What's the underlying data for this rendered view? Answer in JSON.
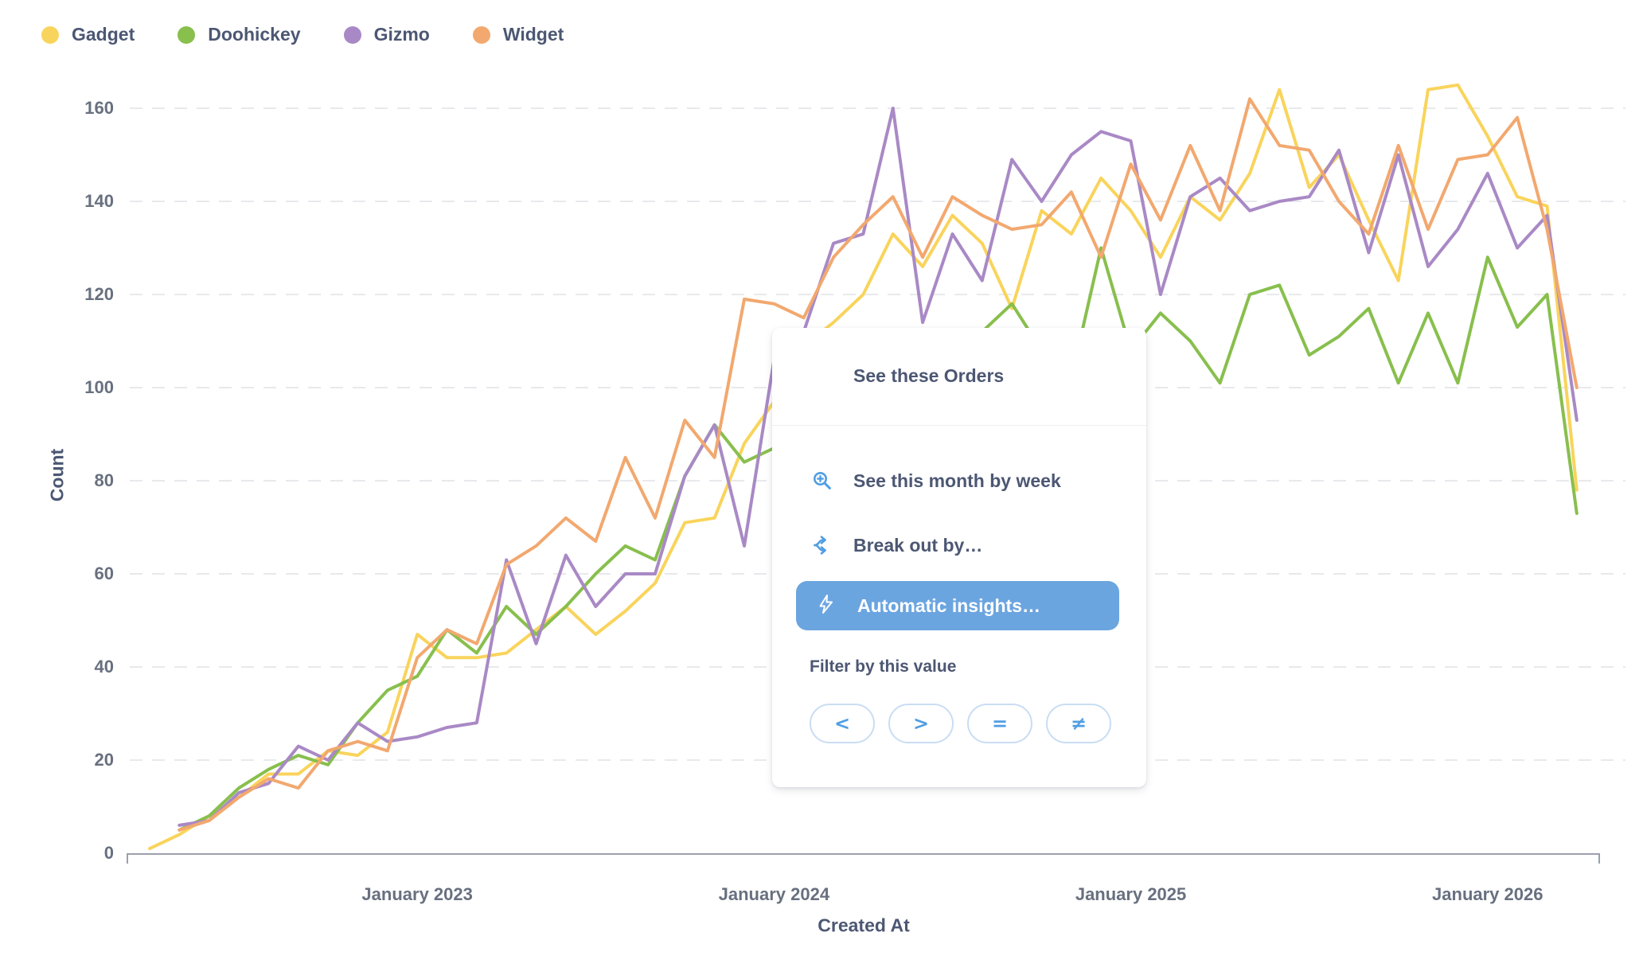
{
  "colors": {
    "brand_blue": "#509EE3",
    "button_blue": "#6BA5E0",
    "text_dark": "#4C5773",
    "tick_grey": "#68707F",
    "gridline": "#E8E9EC",
    "axis_line": "#9AA0AD"
  },
  "legend": {
    "items": [
      {
        "label": "Gadget",
        "color": "#F9D45C"
      },
      {
        "label": "Doohickey",
        "color": "#88BF4D"
      },
      {
        "label": "Gizmo",
        "color": "#A989C5"
      },
      {
        "label": "Widget",
        "color": "#F2A86F"
      }
    ]
  },
  "y_axis": {
    "title": "Count",
    "ticks": [
      0,
      20,
      40,
      60,
      80,
      100,
      120,
      140,
      160
    ]
  },
  "x_axis": {
    "title": "Created At",
    "ticks": [
      {
        "label": "January 2023",
        "month_index": 9
      },
      {
        "label": "January 2024",
        "month_index": 21
      },
      {
        "label": "January 2025",
        "month_index": 33
      },
      {
        "label": "January 2026",
        "month_index": 45
      }
    ]
  },
  "popup": {
    "items": [
      {
        "label": "See these Orders",
        "icon": "table-grid-icon"
      },
      {
        "label": "See this month by week",
        "icon": "zoom-in-icon"
      },
      {
        "label": "Break out by…",
        "icon": "branch-icon"
      },
      {
        "label": "Automatic insights…",
        "icon": "bolt-icon",
        "highlighted": true
      }
    ],
    "filter_section": {
      "label": "Filter by this value",
      "operators": [
        "<",
        ">",
        "=",
        "≠"
      ]
    }
  },
  "chart_data": {
    "type": "line",
    "title": "",
    "xlabel": "Created At",
    "ylabel": "Count",
    "ylim": [
      0,
      160
    ],
    "grid": "horizontal-dashed",
    "legend_position": "top-left",
    "x": [
      "Apr 2022",
      "May 2022",
      "Jun 2022",
      "Jul 2022",
      "Aug 2022",
      "Sep 2022",
      "Oct 2022",
      "Nov 2022",
      "Dec 2022",
      "Jan 2023",
      "Feb 2023",
      "Mar 2023",
      "Apr 2023",
      "May 2023",
      "Jun 2023",
      "Jul 2023",
      "Aug 2023",
      "Sep 2023",
      "Oct 2023",
      "Nov 2023",
      "Dec 2023",
      "Jan 2024",
      "Feb 2024",
      "Mar 2024",
      "Apr 2024",
      "May 2024",
      "Jun 2024",
      "Jul 2024",
      "Aug 2024",
      "Sep 2024",
      "Oct 2024",
      "Nov 2024",
      "Dec 2024",
      "Jan 2025",
      "Feb 2025",
      "Mar 2025",
      "Apr 2025",
      "May 2025",
      "Jun 2025",
      "Jul 2025",
      "Aug 2025",
      "Sep 2025",
      "Oct 2025",
      "Nov 2025",
      "Dec 2025",
      "Jan 2026",
      "Feb 2026",
      "Mar 2026",
      "Apr 2026"
    ],
    "series": [
      {
        "name": "Gadget",
        "color": "#F9D45C",
        "values": [
          1,
          4,
          8,
          12,
          17,
          17,
          22,
          21,
          26,
          47,
          42,
          42,
          43,
          48,
          53,
          47,
          52,
          58,
          71,
          72,
          88,
          97,
          109,
          114,
          120,
          133,
          126,
          137,
          131,
          117,
          138,
          133,
          145,
          138,
          128,
          141,
          136,
          146,
          164,
          143,
          150,
          136,
          123,
          164,
          165,
          154,
          141,
          139,
          78
        ]
      },
      {
        "name": "Doohickey",
        "color": "#88BF4D",
        "values": [
          null,
          5,
          8,
          14,
          18,
          21,
          19,
          28,
          35,
          38,
          48,
          43,
          53,
          47,
          53,
          60,
          66,
          63,
          81,
          92,
          84,
          87,
          95,
          110,
          104,
          100,
          108,
          105,
          112,
          118,
          108,
          102,
          130,
          108,
          116,
          110,
          101,
          120,
          122,
          107,
          111,
          117,
          101,
          116,
          101,
          128,
          113,
          120,
          73
        ]
      },
      {
        "name": "Gizmo",
        "color": "#A989C5",
        "values": [
          null,
          6,
          7,
          13,
          15,
          23,
          20,
          28,
          24,
          25,
          27,
          28,
          63,
          45,
          64,
          53,
          60,
          60,
          81,
          92,
          66,
          106,
          112,
          131,
          133,
          160,
          114,
          133,
          123,
          149,
          140,
          150,
          155,
          153,
          120,
          141,
          145,
          138,
          140,
          141,
          151,
          129,
          150,
          126,
          134,
          146,
          130,
          137,
          93
        ]
      },
      {
        "name": "Widget",
        "color": "#F2A86F",
        "values": [
          null,
          5,
          7,
          12,
          16,
          14,
          22,
          24,
          22,
          42,
          48,
          45,
          62,
          66,
          72,
          67,
          85,
          72,
          93,
          85,
          119,
          118,
          115,
          128,
          135,
          141,
          128,
          141,
          137,
          134,
          135,
          142,
          128,
          148,
          136,
          152,
          138,
          162,
          152,
          151,
          140,
          133,
          152,
          134,
          149,
          150,
          158,
          134,
          100
        ]
      }
    ]
  }
}
